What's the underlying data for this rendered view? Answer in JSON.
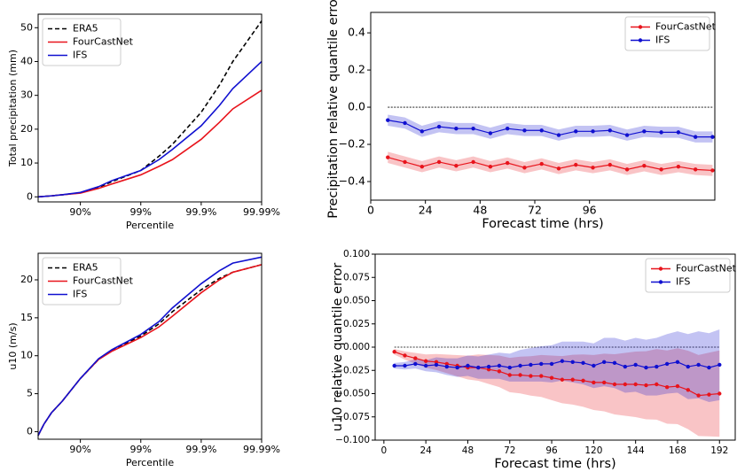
{
  "chart_data": [
    {
      "type": "line",
      "xscale": "tail-log",
      "xlabel": "Percentile",
      "ylabel": "Total precipitation (mm)",
      "legend": "upper left",
      "x": [
        50,
        70,
        80,
        90,
        95,
        97,
        99,
        99.5,
        99.7,
        99.9,
        99.95,
        99.97,
        99.99
      ],
      "xlim": [
        50,
        99.99
      ],
      "xticks": [
        {
          "value": 90,
          "label": "90%"
        },
        {
          "value": 99,
          "label": "99%"
        },
        {
          "value": 99.9,
          "label": "99.9%"
        },
        {
          "value": 99.99,
          "label": "99.99%"
        }
      ],
      "ylim": [
        -1.5,
        54
      ],
      "yticks": [
        0,
        10,
        20,
        30,
        40,
        50
      ],
      "series": [
        {
          "name": "ERA5",
          "color": "#000000",
          "style": "dashed",
          "values": [
            0,
            0.3,
            0.6,
            1.2,
            2.8,
            4.5,
            7.8,
            12,
            15.5,
            25,
            33,
            40,
            52
          ]
        },
        {
          "name": "FourCastNet",
          "color": "#e8141c",
          "style": "solid",
          "values": [
            0,
            0.3,
            0.6,
            1.1,
            2.5,
            3.8,
            6.5,
            9,
            11,
            17,
            22,
            26,
            31.5
          ]
        },
        {
          "name": "IFS",
          "color": "#1010d0",
          "style": "solid",
          "values": [
            0,
            0.3,
            0.6,
            1.3,
            3.0,
            4.8,
            7.8,
            11,
            14,
            21,
            27,
            32,
            40
          ]
        }
      ]
    },
    {
      "type": "line",
      "xlabel": "Forecast time (hrs)",
      "ylabel": "Precipitation relative quantile error",
      "legend": "upper right",
      "markers": true,
      "hline": 0,
      "x": [
        7.5,
        15,
        22.5,
        30,
        37.5,
        45,
        52.5,
        60,
        67.5,
        75,
        82.5,
        90,
        97.5,
        105,
        112.5,
        120,
        127.5,
        135,
        142.5,
        150
      ],
      "xlim": [
        0,
        151
      ],
      "xticks": [
        0,
        24,
        48,
        72,
        96
      ],
      "ylim": [
        -0.5,
        0.51
      ],
      "yticks": [
        {
          "value": -0.4,
          "label": "−0.4"
        },
        {
          "value": -0.2,
          "label": "−0.2"
        },
        {
          "value": 0,
          "label": "0.0"
        },
        0.2,
        0.4
      ],
      "series": [
        {
          "name": "FourCastNet",
          "color": "#e8141c",
          "style": "solid",
          "values": [
            -0.27,
            -0.295,
            -0.32,
            -0.295,
            -0.315,
            -0.295,
            -0.32,
            -0.3,
            -0.325,
            -0.305,
            -0.33,
            -0.31,
            -0.325,
            -0.31,
            -0.335,
            -0.315,
            -0.335,
            -0.32,
            -0.335,
            -0.34
          ],
          "errors": [
            0.03,
            0.03,
            0.03,
            0.03,
            0.03,
            0.03,
            0.03,
            0.03,
            0.03,
            0.03,
            0.03,
            0.03,
            0.03,
            0.03,
            0.03,
            0.03,
            0.03,
            0.03,
            0.03,
            0.03
          ]
        },
        {
          "name": "IFS",
          "color": "#1010d0",
          "style": "solid",
          "values": [
            -0.07,
            -0.085,
            -0.13,
            -0.105,
            -0.115,
            -0.115,
            -0.14,
            -0.115,
            -0.125,
            -0.125,
            -0.15,
            -0.13,
            -0.13,
            -0.125,
            -0.15,
            -0.13,
            -0.135,
            -0.135,
            -0.16,
            -0.16
          ],
          "errors": [
            0.03,
            0.03,
            0.03,
            0.03,
            0.03,
            0.03,
            0.03,
            0.03,
            0.03,
            0.03,
            0.03,
            0.03,
            0.03,
            0.03,
            0.03,
            0.03,
            0.03,
            0.03,
            0.03,
            0.03
          ]
        }
      ]
    },
    {
      "type": "line",
      "xscale": "tail-log",
      "xlabel": "Percentile",
      "ylabel": "u10 (m/s)",
      "legend": "upper left",
      "x": [
        50,
        60,
        70,
        80,
        90,
        95,
        97,
        99,
        99.5,
        99.7,
        99.9,
        99.95,
        99.97,
        99.99
      ],
      "xlim": [
        50,
        99.99
      ],
      "xticks": [
        {
          "value": 90,
          "label": "90%"
        },
        {
          "value": 99,
          "label": "99%"
        },
        {
          "value": 99.9,
          "label": "99.9%"
        },
        {
          "value": 99.99,
          "label": "99.99%"
        }
      ],
      "ylim": [
        -1,
        23.5
      ],
      "yticks": [
        0,
        5,
        10,
        15,
        20
      ],
      "series": [
        {
          "name": "ERA5",
          "color": "#000000",
          "style": "dashed",
          "values": [
            -0.5,
            1,
            2.5,
            4,
            7,
            9.5,
            10.7,
            12.6,
            14.2,
            15.8,
            18.7,
            20.2,
            21,
            22
          ]
        },
        {
          "name": "FourCastNet",
          "color": "#e8141c",
          "style": "solid",
          "values": [
            -0.5,
            1,
            2.5,
            4,
            7,
            9.5,
            10.6,
            12.4,
            13.8,
            15.2,
            18.3,
            20,
            21,
            22
          ]
        },
        {
          "name": "IFS",
          "color": "#1010d0",
          "style": "solid",
          "values": [
            -0.5,
            1,
            2.5,
            4,
            7,
            9.6,
            10.8,
            12.8,
            14.5,
            16.3,
            19.5,
            21.2,
            22.2,
            23
          ]
        }
      ]
    },
    {
      "type": "line",
      "xlabel": "Forecast time (hrs)",
      "ylabel": "u10 relative quantile error",
      "legend": "upper right",
      "markers": true,
      "hline": 0,
      "x": [
        6,
        12,
        18,
        24,
        30,
        36,
        42,
        48,
        54,
        60,
        66,
        72,
        78,
        84,
        90,
        96,
        102,
        108,
        114,
        120,
        126,
        132,
        138,
        144,
        150,
        156,
        162,
        168,
        174,
        180,
        186,
        192
      ],
      "xlim": [
        -5,
        201
      ],
      "xticks": [
        0,
        24,
        48,
        72,
        96,
        120,
        144,
        168,
        192
      ],
      "ylim": [
        -0.1,
        0.1
      ],
      "yticks": [
        {
          "value": -0.1,
          "label": "−0.100"
        },
        {
          "value": -0.075,
          "label": "−0.075"
        },
        {
          "value": -0.05,
          "label": "−0.050"
        },
        {
          "value": -0.025,
          "label": "−0.025"
        },
        {
          "value": 0,
          "label": "0.000"
        },
        {
          "value": 0.025,
          "label": "0.025"
        },
        {
          "value": 0.05,
          "label": "0.050"
        },
        {
          "value": 0.075,
          "label": "0.075"
        },
        {
          "value": 0.1,
          "label": "0.100"
        }
      ],
      "series": [
        {
          "name": "FourCastNet",
          "color": "#e8141c",
          "style": "solid",
          "values": [
            -0.005,
            -0.009,
            -0.012,
            -0.015,
            -0.016,
            -0.018,
            -0.02,
            -0.022,
            -0.022,
            -0.024,
            -0.026,
            -0.03,
            -0.03,
            -0.031,
            -0.031,
            -0.033,
            -0.035,
            -0.035,
            -0.036,
            -0.038,
            -0.038,
            -0.04,
            -0.04,
            -0.04,
            -0.041,
            -0.04,
            -0.043,
            -0.042,
            -0.046,
            -0.052,
            -0.051,
            -0.05
          ],
          "errors": [
            0.003,
            0.0044,
            0.0058,
            0.0072,
            0.0086,
            0.01,
            0.0114,
            0.0128,
            0.0142,
            0.0156,
            0.017,
            0.0184,
            0.0198,
            0.0212,
            0.0226,
            0.024,
            0.0254,
            0.0268,
            0.0282,
            0.0296,
            0.031,
            0.0324,
            0.0338,
            0.0352,
            0.0366,
            0.038,
            0.0394,
            0.0408,
            0.0422,
            0.0436,
            0.045,
            0.0464
          ]
        },
        {
          "name": "IFS",
          "color": "#1010d0",
          "style": "solid",
          "values": [
            -0.02,
            -0.02,
            -0.018,
            -0.02,
            -0.019,
            -0.021,
            -0.022,
            -0.02,
            -0.022,
            -0.021,
            -0.02,
            -0.022,
            -0.02,
            -0.019,
            -0.018,
            -0.018,
            -0.015,
            -0.016,
            -0.017,
            -0.02,
            -0.016,
            -0.017,
            -0.021,
            -0.019,
            -0.022,
            -0.021,
            -0.018,
            -0.016,
            -0.021,
            -0.019,
            -0.022,
            -0.019
          ],
          "errors": [
            0.003,
            0.004,
            0.005,
            0.006,
            0.008,
            0.009,
            0.01,
            0.011,
            0.012,
            0.013,
            0.014,
            0.015,
            0.017,
            0.018,
            0.019,
            0.02,
            0.021,
            0.022,
            0.023,
            0.024,
            0.026,
            0.027,
            0.028,
            0.029,
            0.03,
            0.031,
            0.032,
            0.033,
            0.035,
            0.036,
            0.037,
            0.038
          ]
        }
      ]
    }
  ]
}
